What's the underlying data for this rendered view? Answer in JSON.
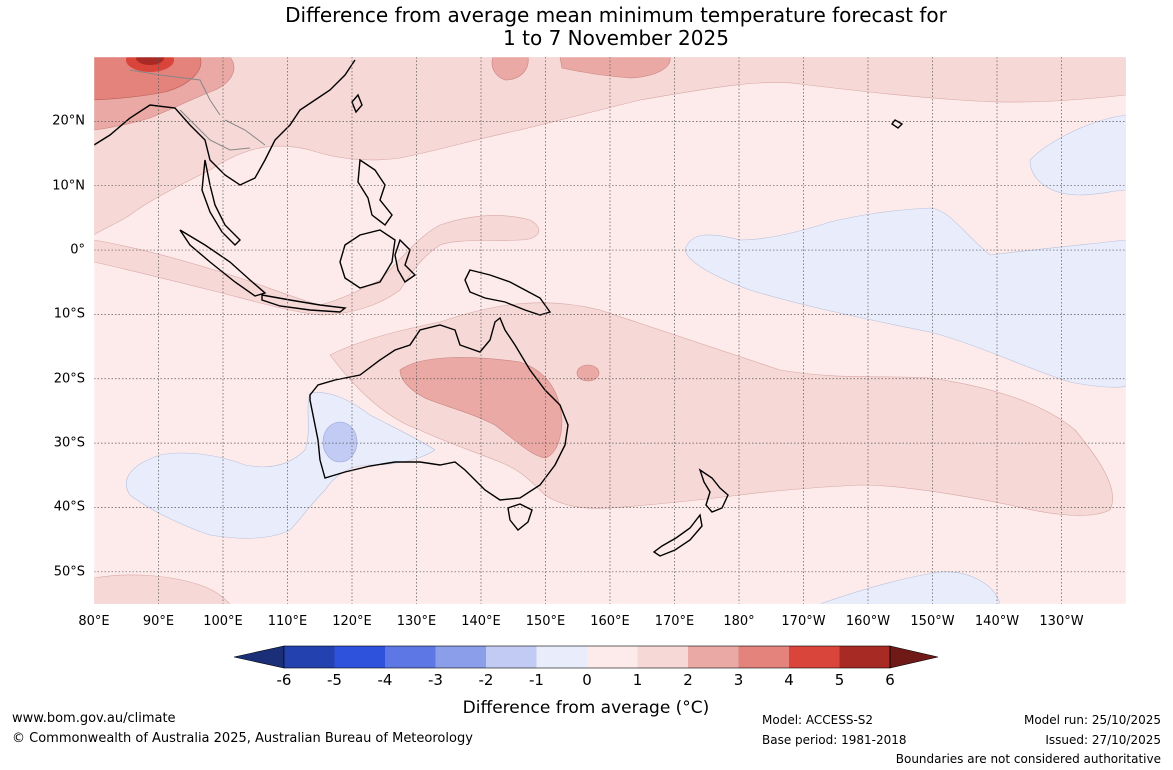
{
  "title": {
    "line1": "Difference from average mean minimum temperature forecast for",
    "line2": "1 to 7 November 2025"
  },
  "map": {
    "projection": "equirectangular",
    "lon_range": [
      80,
      240
    ],
    "lat_range": [
      -55,
      30
    ],
    "gridlines": true,
    "lat_labels": [
      "20°N",
      "10°N",
      "0°",
      "10°S",
      "20°S",
      "30°S",
      "40°S",
      "50°S"
    ],
    "lon_labels": [
      "80°E",
      "90°E",
      "100°E",
      "110°E",
      "120°E",
      "130°E",
      "140°E",
      "150°E",
      "160°E",
      "170°E",
      "180°",
      "170°W",
      "160°W",
      "150°W",
      "140°W",
      "130°W"
    ]
  },
  "colorbar": {
    "ticks": [
      "-6",
      "-5",
      "-4",
      "-3",
      "-2",
      "-1",
      "0",
      "1",
      "2",
      "3",
      "4",
      "5",
      "6"
    ],
    "colors": {
      "below_-6": "#1a2f78",
      "-6_-5": "#2441b0",
      "-5_-4": "#2f52dc",
      "-4_-3": "#5d78e4",
      "-3_-2": "#8a9eea",
      "-2_-1": "#c2cbf4",
      "-1_0": "#e9edfb",
      "0_1": "#fcebea",
      "1_2": "#f6d8d6",
      "2_3": "#eaa9a5",
      "3_4": "#e3837c",
      "4_5": "#d9453a",
      "5_6": "#a82a25",
      "above_6": "#6f1a17"
    },
    "label": "Difference from average (°C)"
  },
  "footer": {
    "website": "www.bom.gov.au/climate",
    "copyright": "© Commonwealth of Australia 2025, Australian Bureau of Meteorology",
    "model": "Model: ACCESS-S2",
    "base_period": "Base period: 1981-2018",
    "model_run": "Model run: 25/10/2025",
    "issued": "Issued: 27/10/2025",
    "disclaimer": "Boundaries are not considered authoritative"
  }
}
